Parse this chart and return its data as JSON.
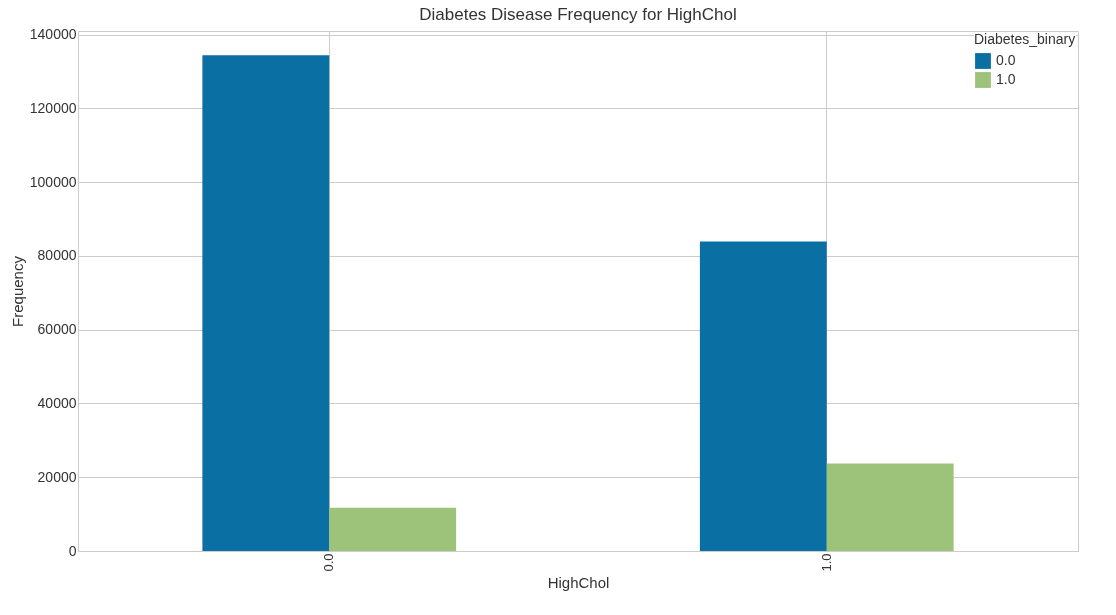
{
  "chart_data": {
    "type": "bar",
    "title": "Diabetes Disease Frequency for HighChol",
    "xlabel": "HighChol",
    "ylabel": "Frequency",
    "legend_title": "Diabetes_binary",
    "categories": [
      "0.0",
      "1.0"
    ],
    "series": [
      {
        "name": "0.0",
        "color": "#0a6fa3",
        "values": [
          134400,
          83900
        ]
      },
      {
        "name": "1.0",
        "color": "#9dc27a",
        "values": [
          11700,
          23700
        ]
      }
    ],
    "ylim": [
      0,
      141000
    ],
    "yticks": [
      0,
      20000,
      40000,
      60000,
      80000,
      100000,
      120000,
      140000
    ],
    "grid": true,
    "legend": "top right"
  }
}
